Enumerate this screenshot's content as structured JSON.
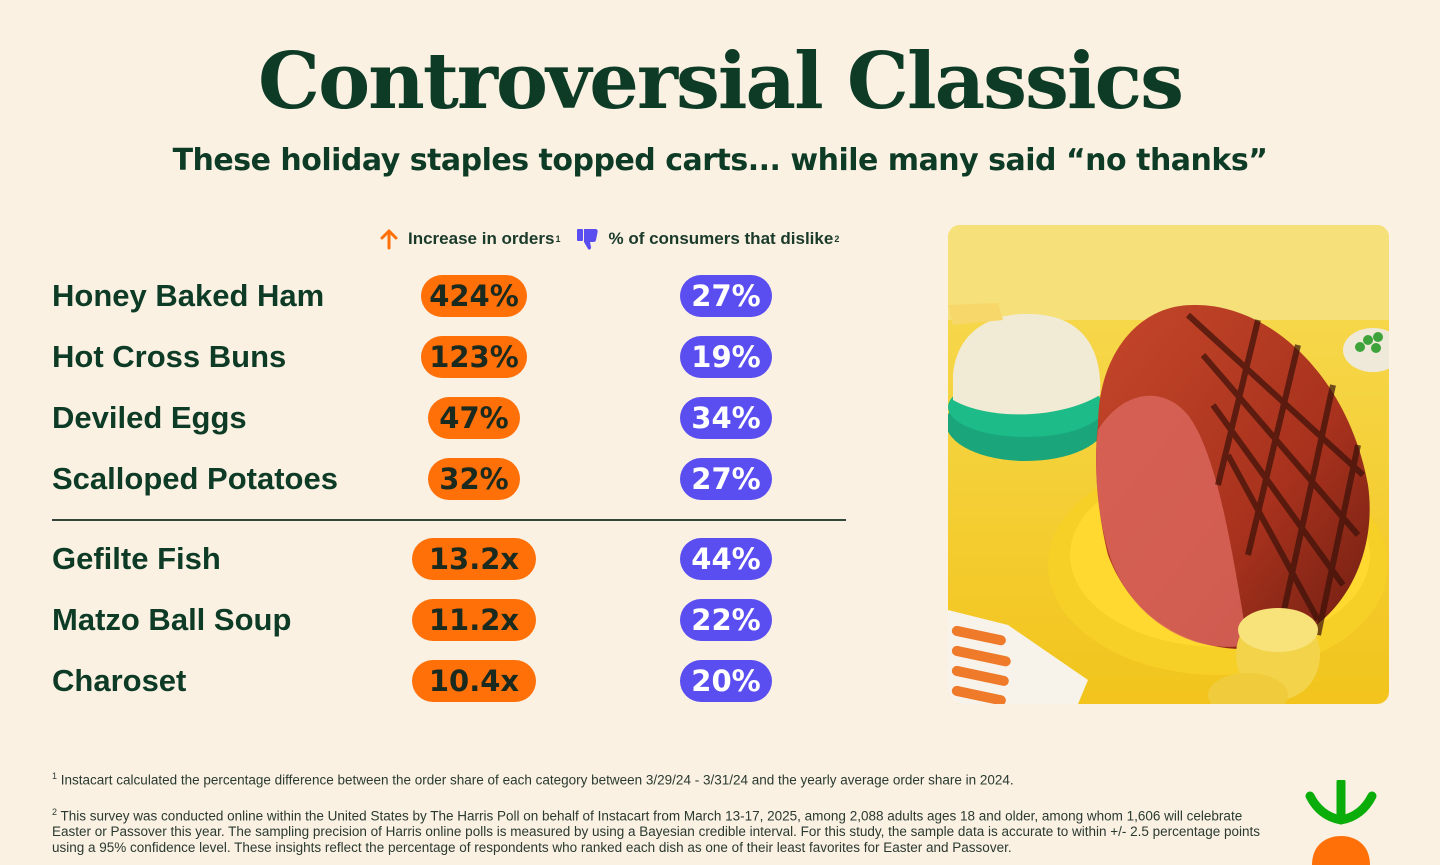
{
  "title": "Controversial Classics",
  "subtitle": "These holiday staples topped carts... while many said “no thanks”",
  "legend": {
    "increase_label": "Increase in orders",
    "increase_note": "1",
    "dislike_label": "% of consumers that dislike",
    "dislike_note": "2",
    "increase_icon": "arrow-up-icon",
    "dislike_icon": "thumbs-down-icon"
  },
  "colors": {
    "orange": "#ff7009",
    "purple": "#5b4ef0",
    "dark_green": "#0d3b26",
    "background": "#faf1e3"
  },
  "chart_data": {
    "type": "table",
    "columns": [
      "Increase in orders",
      "% of consumers that dislike"
    ],
    "groups": [
      {
        "rows": [
          {
            "item": "Honey Baked Ham",
            "increase": "424%",
            "dislike": "27%"
          },
          {
            "item": "Hot Cross Buns",
            "increase": "123%",
            "dislike": "19%"
          },
          {
            "item": "Deviled Eggs",
            "increase": "47%",
            "dislike": "34%"
          },
          {
            "item": "Scalloped Potatoes",
            "increase": "32%",
            "dislike": "27%"
          }
        ]
      },
      {
        "rows": [
          {
            "item": "Gefilte Fish",
            "increase": "13.2x",
            "dislike": "44%"
          },
          {
            "item": "Matzo Ball Soup",
            "increase": "11.2x",
            "dislike": "22%"
          },
          {
            "item": "Charoset",
            "increase": "10.4x",
            "dislike": "20%"
          }
        ]
      }
    ]
  },
  "footnotes": [
    {
      "mark": "1",
      "text": "Instacart calculated the percentage difference between the order share of each category between 3/29/24 - 3/31/24 and the yearly average order share in 2024."
    },
    {
      "mark": "2",
      "text": "This survey was conducted online within the United States by The Harris Poll on behalf of Instacart from March 13-17, 2025, among 2,088 adults ages 18 and older, among whom 1,606 will celebrate Easter or Passover this year. The sampling precision of Harris online polls is measured by using a Bayesian credible interval. For this study, the sample data is accurate to within +/- 2.5 percentage points using a 95% confidence level. These insights reflect the percentage of respondents who ranked each dish as one of their least favorites for Easter and Passover."
    }
  ],
  "photo_icon": "holiday-ham-photo",
  "logo_icon": "carrot-logo-icon"
}
